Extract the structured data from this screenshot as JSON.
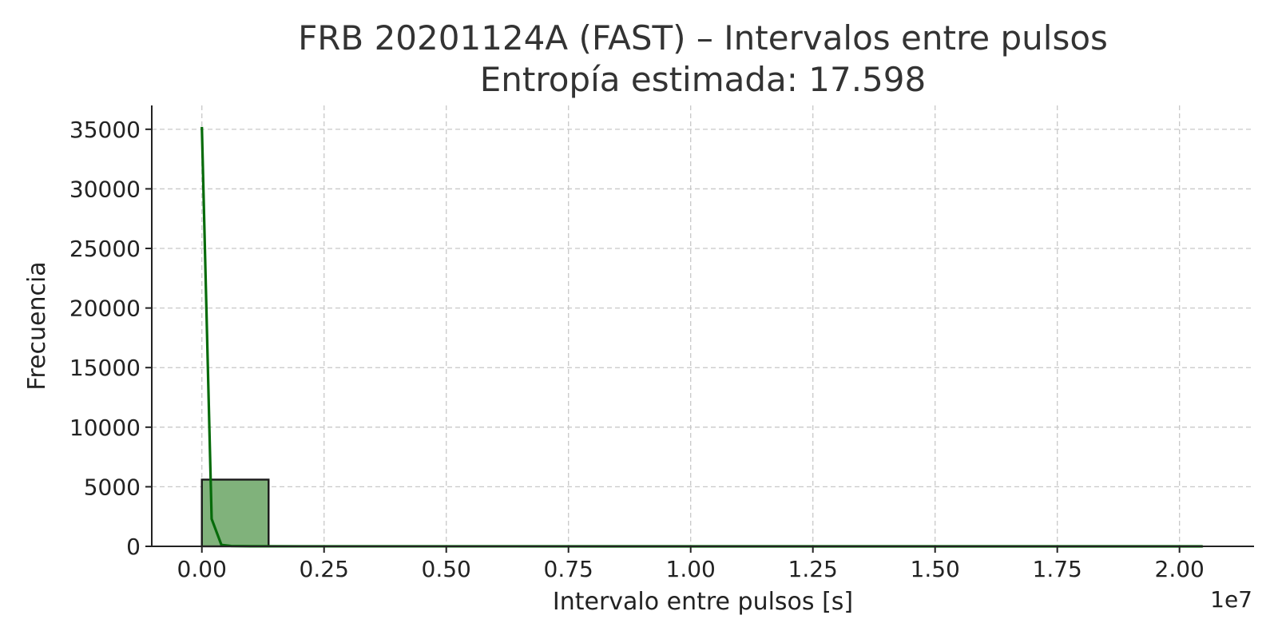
{
  "chart_data": {
    "type": "bar",
    "title": "FRB 20201124A (FAST) – Intervalos entre pulsos",
    "subtitle": "Entropía estimada: 17.598",
    "xlabel": "Intervalo entre pulsos [s]",
    "ylabel": "Frecuencia",
    "x_offset_label": "1e7",
    "xlim": [
      -1025000,
      21525000
    ],
    "ylim": [
      0,
      37000
    ],
    "xticks": [
      0,
      2500000,
      5000000,
      7500000,
      10000000,
      12500000,
      15000000,
      17500000,
      20000000
    ],
    "xtick_labels": [
      "0.00",
      "0.25",
      "0.50",
      "0.75",
      "1.00",
      "1.25",
      "1.50",
      "1.75",
      "2.00"
    ],
    "yticks": [
      0,
      5000,
      10000,
      15000,
      20000,
      25000,
      30000,
      35000
    ],
    "ytick_labels": [
      "0",
      "5000",
      "10000",
      "15000",
      "20000",
      "25000",
      "30000",
      "35000"
    ],
    "grid": true,
    "bars": {
      "bin_edges": [
        0,
        1365000,
        2730000,
        4095000,
        5460000,
        6825000,
        8190000,
        9555000,
        10920000,
        12285000,
        13650000,
        15015000,
        16380000,
        17745000,
        19110000,
        20475000
      ],
      "counts": [
        5600,
        3,
        1,
        1,
        1,
        1,
        1,
        1,
        0,
        1,
        0,
        1,
        0,
        1,
        0
      ],
      "color": "#80b27b",
      "edge_color": "#1a1a1a"
    },
    "kde": {
      "color": "#066b0a",
      "x": [
        0,
        200000,
        400000,
        600000,
        1000000,
        2000000,
        5000000,
        10000000,
        15000000,
        20475000
      ],
      "y": [
        35200,
        2300,
        120,
        30,
        10,
        5,
        3,
        2,
        2,
        2
      ]
    }
  }
}
